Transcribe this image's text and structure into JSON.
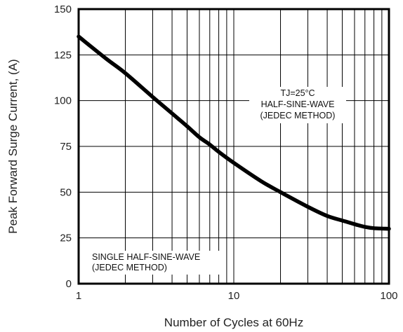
{
  "chart_data": {
    "type": "line",
    "xscale": "log",
    "xlabel": "Number of Cycles at 60Hz",
    "ylabel": "Peak Forward Surge Current, (A)",
    "xlim": [
      1,
      100
    ],
    "ylim": [
      0,
      150
    ],
    "x_ticks": [
      1,
      10,
      100
    ],
    "y_ticks": [
      0,
      25,
      50,
      75,
      100,
      125,
      150
    ],
    "grid": true,
    "series": [
      {
        "x": [
          1,
          1.5,
          2,
          3,
          4,
          5,
          6,
          7,
          8,
          10,
          15,
          20,
          30,
          40,
          50,
          60,
          70,
          80,
          100
        ],
        "values": [
          135,
          123,
          115,
          102,
          93,
          86,
          80,
          76,
          72,
          66,
          56,
          50,
          42,
          37,
          34.5,
          32.5,
          31,
          30.3,
          30
        ]
      }
    ],
    "annotations": {
      "top_right": [
        "TJ=25°C",
        "HALF-SINE-WAVE",
        "(JEDEC METHOD)"
      ],
      "bottom_left": [
        "SINGLE HALF-SINE-WAVE",
        "(JEDEC METHOD)"
      ]
    },
    "colors": {
      "line": "#000000",
      "grid": "#000000",
      "background": "#ffffff"
    }
  }
}
